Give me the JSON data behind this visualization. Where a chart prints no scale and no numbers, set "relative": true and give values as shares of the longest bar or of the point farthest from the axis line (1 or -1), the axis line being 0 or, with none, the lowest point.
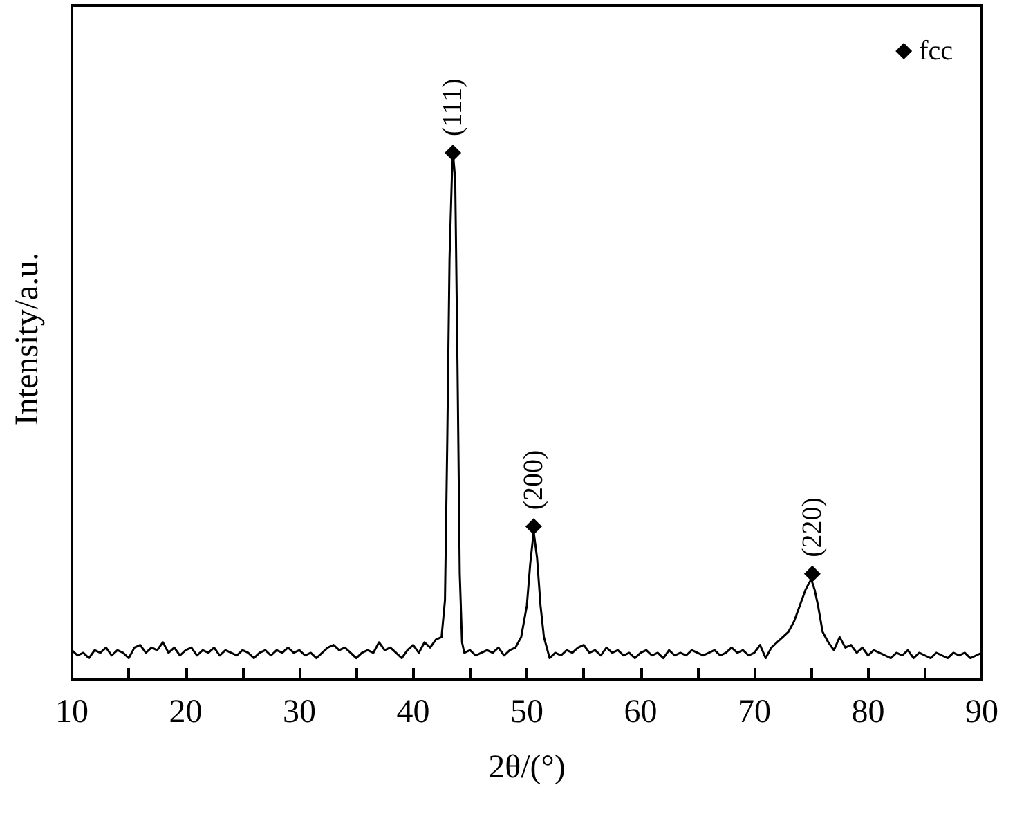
{
  "chart_data": {
    "type": "line",
    "relative": true,
    "xlabel": "2θ/(°)",
    "ylabel": "Intensity/a.u.",
    "xlim": [
      10,
      90
    ],
    "xticks": [
      10,
      {
        "value": 15,
        "label": null
      },
      20,
      {
        "value": 25,
        "label": null
      },
      30,
      {
        "value": 35,
        "label": null
      },
      40,
      {
        "value": 45,
        "label": null
      },
      50,
      {
        "value": 55,
        "label": null
      },
      60,
      {
        "value": 65,
        "label": null
      },
      70,
      {
        "value": 75,
        "label": null
      },
      80,
      {
        "value": 85,
        "label": null
      },
      90
    ],
    "grid": false,
    "legend": "top right",
    "tick_labels": "x",
    "series": [
      {
        "color": "#000000",
        "marker": "none",
        "x": [
          10,
          10.5,
          11,
          11.5,
          12,
          12.5,
          13,
          13.5,
          14,
          14.5,
          15,
          15.5,
          16,
          16.5,
          17,
          17.5,
          18,
          18.5,
          19,
          19.5,
          20,
          20.5,
          21,
          21.5,
          22,
          22.5,
          23,
          23.5,
          24,
          24.5,
          25,
          25.5,
          26,
          26.5,
          27,
          27.5,
          28,
          28.5,
          29,
          29.5,
          30,
          30.5,
          31,
          31.5,
          32,
          32.5,
          33,
          33.5,
          34,
          34.5,
          35,
          35.5,
          36,
          36.5,
          37,
          37.5,
          38,
          38.5,
          39,
          39.5,
          40,
          40.5,
          41,
          41.5,
          42,
          42.5,
          42.8,
          43,
          43.2,
          43.4,
          43.5,
          43.7,
          43.9,
          44.1,
          44.3,
          44.5,
          45,
          45.5,
          46,
          46.5,
          47,
          47.5,
          48,
          48.5,
          49,
          49.5,
          50,
          50.3,
          50.6,
          50.9,
          51.2,
          51.5,
          52,
          52.5,
          53,
          53.5,
          54,
          54.5,
          55,
          55.5,
          56,
          56.5,
          57,
          57.5,
          58,
          58.5,
          59,
          59.5,
          60,
          60.5,
          61,
          61.5,
          62,
          62.5,
          63,
          63.5,
          64,
          64.5,
          65,
          65.5,
          66,
          66.5,
          67,
          67.5,
          68,
          68.5,
          69,
          69.5,
          70,
          70.5,
          71,
          71.5,
          72,
          72.5,
          73,
          73.5,
          74,
          74.5,
          75,
          75.3,
          75.6,
          76,
          76.5,
          77,
          77.5,
          78,
          78.5,
          79,
          79.5,
          80,
          80.5,
          81,
          81.5,
          82,
          82.5,
          83,
          83.5,
          84,
          84.5,
          85,
          85.5,
          86,
          86.5,
          87,
          87.5,
          88,
          88.5,
          89,
          89.5,
          90
        ],
        "values": [
          0.055,
          0.045,
          0.05,
          0.04,
          0.055,
          0.05,
          0.06,
          0.045,
          0.055,
          0.05,
          0.04,
          0.06,
          0.065,
          0.05,
          0.06,
          0.055,
          0.07,
          0.05,
          0.06,
          0.045,
          0.055,
          0.06,
          0.045,
          0.055,
          0.05,
          0.06,
          0.045,
          0.055,
          0.05,
          0.045,
          0.055,
          0.05,
          0.04,
          0.05,
          0.055,
          0.045,
          0.055,
          0.05,
          0.06,
          0.05,
          0.055,
          0.045,
          0.05,
          0.04,
          0.05,
          0.06,
          0.065,
          0.055,
          0.06,
          0.05,
          0.04,
          0.05,
          0.055,
          0.05,
          0.07,
          0.055,
          0.06,
          0.05,
          0.04,
          0.055,
          0.065,
          0.05,
          0.07,
          0.06,
          0.075,
          0.08,
          0.15,
          0.45,
          0.8,
          0.95,
          1.0,
          0.95,
          0.6,
          0.2,
          0.07,
          0.05,
          0.055,
          0.045,
          0.05,
          0.055,
          0.05,
          0.06,
          0.045,
          0.055,
          0.06,
          0.08,
          0.14,
          0.22,
          0.28,
          0.23,
          0.14,
          0.08,
          0.04,
          0.05,
          0.045,
          0.055,
          0.05,
          0.06,
          0.065,
          0.05,
          0.055,
          0.045,
          0.06,
          0.05,
          0.055,
          0.045,
          0.05,
          0.04,
          0.05,
          0.055,
          0.045,
          0.05,
          0.04,
          0.055,
          0.045,
          0.05,
          0.045,
          0.055,
          0.05,
          0.045,
          0.05,
          0.055,
          0.045,
          0.05,
          0.06,
          0.05,
          0.055,
          0.045,
          0.05,
          0.065,
          0.04,
          0.06,
          0.07,
          0.08,
          0.09,
          0.11,
          0.14,
          0.17,
          0.19,
          0.17,
          0.14,
          0.09,
          0.07,
          0.055,
          0.08,
          0.06,
          0.065,
          0.05,
          0.06,
          0.045,
          0.055,
          0.05,
          0.045,
          0.04,
          0.05,
          0.045,
          0.055,
          0.04,
          0.05,
          0.045,
          0.04,
          0.05,
          0.045,
          0.04,
          0.05,
          0.045,
          0.05,
          0.04,
          0.045,
          0.05
        ]
      },
      {
        "type": "scatter",
        "name": "fcc",
        "color": "#000000",
        "marker": "diamond",
        "x": [
          43.5,
          50.6,
          75.1
        ],
        "values": [
          1.0,
          0.29,
          0.2
        ]
      }
    ],
    "annotations": [
      {
        "text": "(111)",
        "x": 43.5,
        "y": 1.0
      },
      {
        "text": "(200)",
        "x": 50.6,
        "y": 0.29
      },
      {
        "text": "(220)",
        "x": 75.1,
        "y": 0.2
      }
    ]
  }
}
